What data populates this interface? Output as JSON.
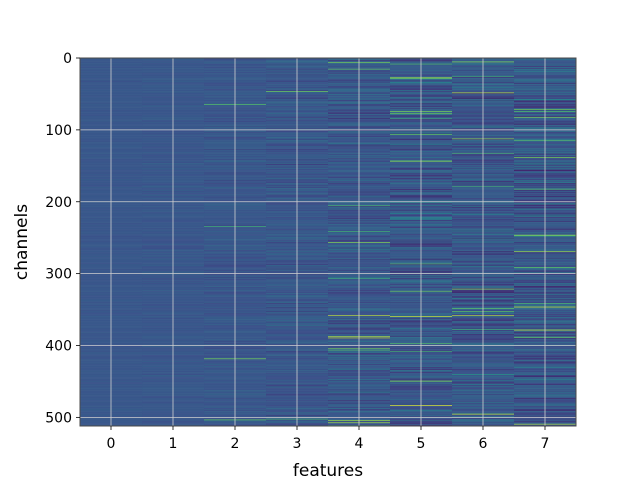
{
  "chart_data": {
    "type": "heatmap",
    "title": "",
    "xlabel": "features",
    "ylabel": "channels",
    "x_categories": [
      "0",
      "1",
      "2",
      "3",
      "4",
      "5",
      "6",
      "7"
    ],
    "y_range": [
      0,
      512
    ],
    "y_ticks": [
      0,
      100,
      200,
      300,
      400,
      500
    ],
    "y_inverted": true,
    "grid": true,
    "colormap": "viridis",
    "colors": {
      "low": "#440154",
      "mid": "#3b528b",
      "high": "#5ec962",
      "max": "#fde725",
      "grid": "#d0d0d0"
    },
    "column_spread": [
      0.03,
      0.05,
      0.08,
      0.13,
      0.18,
      0.22,
      0.22,
      0.24
    ],
    "cell_rows": 512
  }
}
